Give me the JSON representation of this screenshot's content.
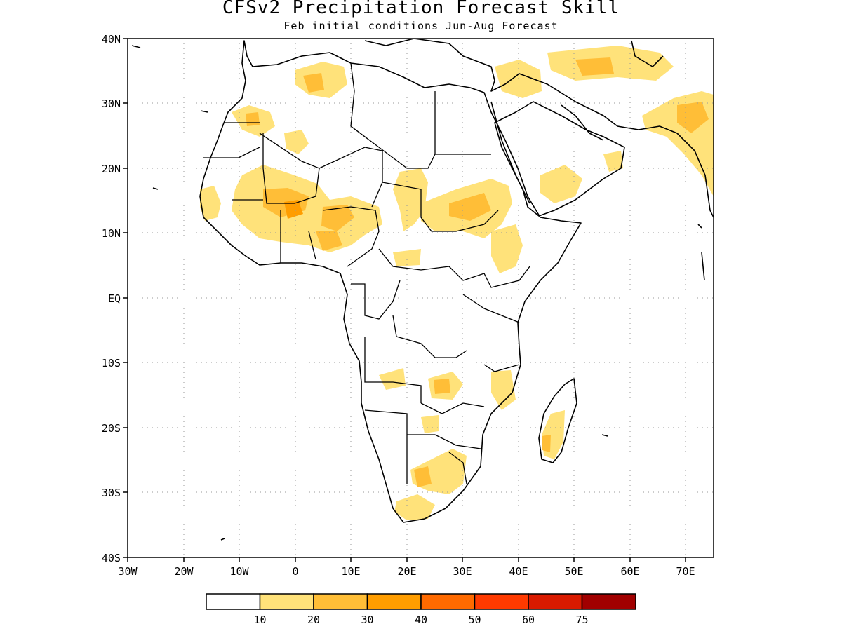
{
  "title": "CFSv2 Precipitation Forecast Skill",
  "subtitle": "Feb initial conditions  Jun-Aug Forecast",
  "map": {
    "lon_range": [
      -30,
      75
    ],
    "lat_range": [
      -40,
      40
    ],
    "lon_ticks": [
      "30W",
      "20W",
      "10W",
      "0",
      "10E",
      "20E",
      "30E",
      "40E",
      "50E",
      "60E",
      "70E"
    ],
    "lat_ticks": [
      "40N",
      "30N",
      "20N",
      "10N",
      "EQ",
      "10S",
      "20S",
      "30S",
      "40S"
    ],
    "grid": "dotted",
    "land_color": "#ffffff",
    "outline_color": "#000000"
  },
  "colorbar": {
    "colors": [
      "#ffffff",
      "#ffe27a",
      "#ffbe37",
      "#ff9d00",
      "#ff6a00",
      "#ff3a00",
      "#d91a00",
      "#a10000"
    ],
    "labels": [
      "10",
      "20",
      "30",
      "40",
      "50",
      "60",
      "75"
    ]
  }
}
